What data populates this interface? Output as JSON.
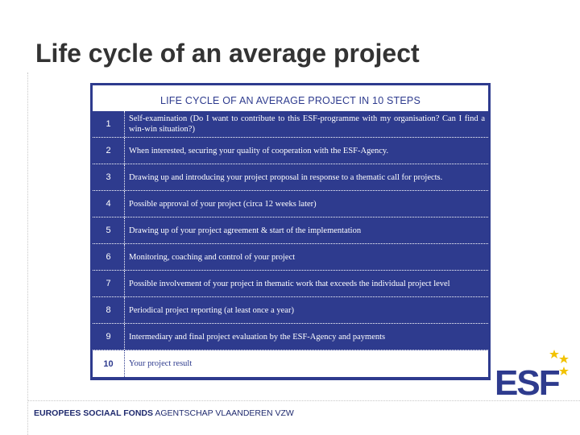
{
  "slide": {
    "title": "Life cycle of an average project"
  },
  "table": {
    "header": "LIFE CYCLE OF AN AVERAGE PROJECT IN 10 STEPS",
    "steps": [
      {
        "num": "1",
        "text": "Self-examination (Do I want to contribute to this ESF-programme with my organisation? Can I find a win-win situation?)"
      },
      {
        "num": "2",
        "text": "When interested, securing your quality of cooperation with the ESF-Agency."
      },
      {
        "num": "3",
        "text": "Drawing up and introducing your project proposal in response to a thematic call for projects."
      },
      {
        "num": "4",
        "text": "Possible approval of your project (circa 12 weeks later)"
      },
      {
        "num": "5",
        "text": "Drawing up of your project agreement & start of the implementation"
      },
      {
        "num": "6",
        "text": "Monitoring, coaching and control of your project"
      },
      {
        "num": "7",
        "text": "Possible involvement of your project in thematic work that exceeds the individual project level"
      },
      {
        "num": "8",
        "text": "Periodical project reporting (at least once a year)"
      },
      {
        "num": "9",
        "text": "Intermediary and final project evaluation by the ESF-Agency and payments"
      },
      {
        "num": "10",
        "text": "Your project result"
      }
    ]
  },
  "footer": {
    "bold": "EUROPEES SOCIAAL FONDS",
    "normal": " AGENTSCHAP VLAANDEREN VZW"
  },
  "logo": {
    "text": "ESF",
    "colors": {
      "letters": "#2e3b8e",
      "stars": "#f2c200"
    }
  }
}
